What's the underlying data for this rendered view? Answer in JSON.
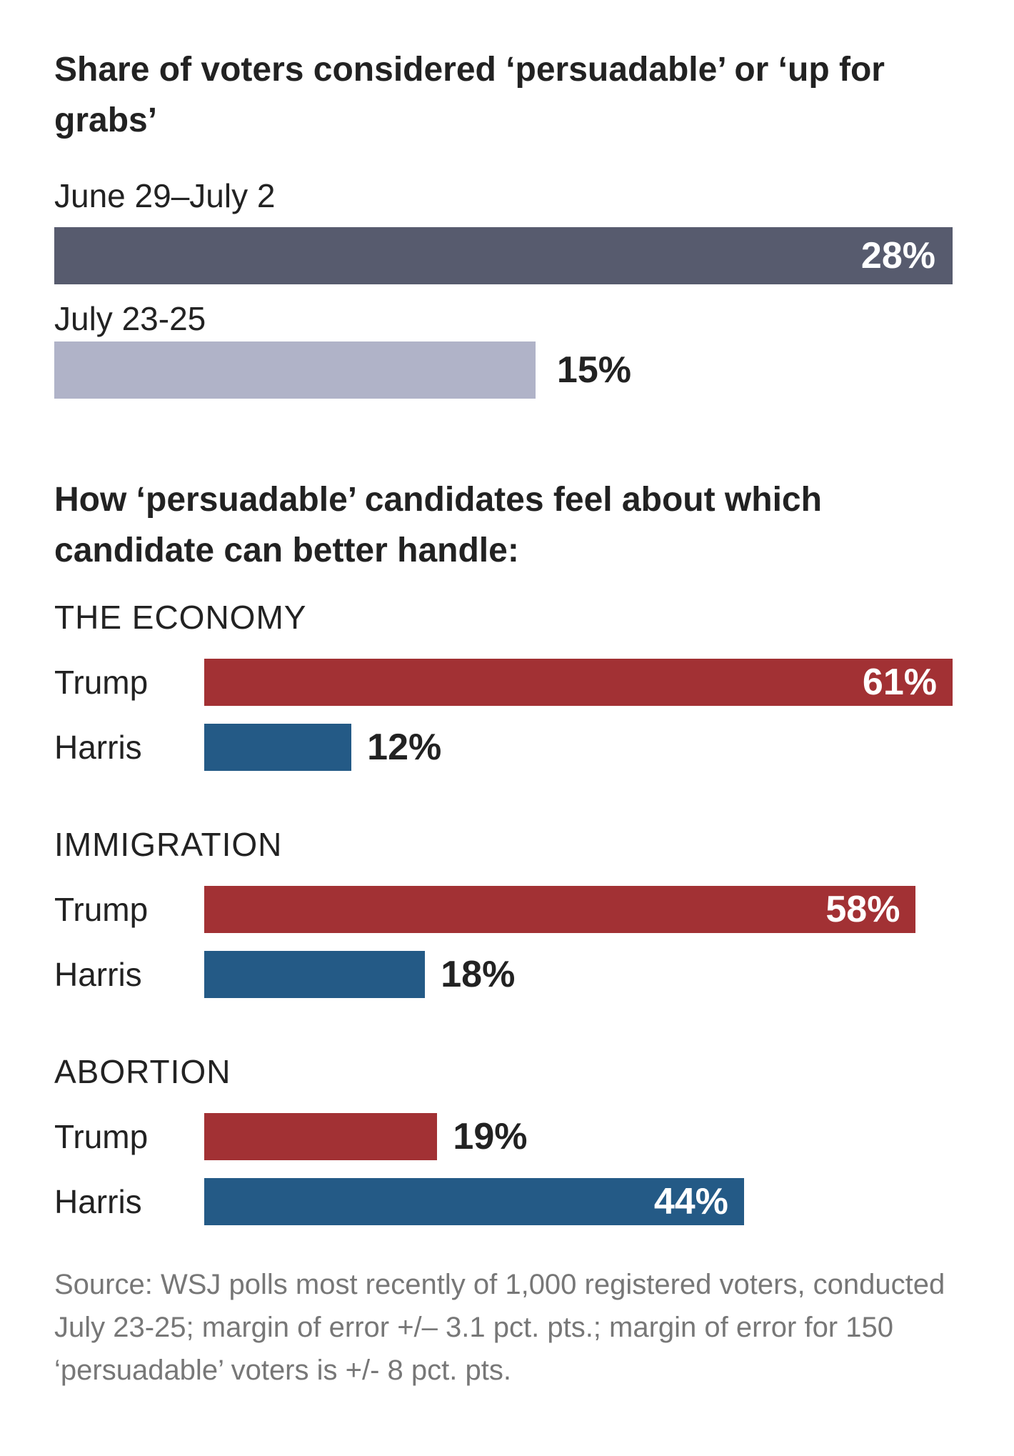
{
  "chart_data": [
    {
      "type": "bar",
      "orientation": "horizontal",
      "title": "Share of voters considered ‘persuadable’ or ‘up for grabs’",
      "categories": [
        "June 29–July 2",
        "July 23-25"
      ],
      "values": [
        28,
        15
      ],
      "labels": [
        "28%",
        "15%"
      ],
      "colors": [
        "#575b6e",
        "#b0b3c8"
      ],
      "xlim": [
        0,
        28
      ]
    },
    {
      "type": "bar",
      "orientation": "horizontal",
      "title": "How ‘persuadable’ candidates feel about which candidate can better handle:",
      "xlim": [
        0,
        61
      ],
      "series_names": [
        "Trump",
        "Harris"
      ],
      "colors": {
        "Trump": "#a23134",
        "Harris": "#245a86"
      },
      "groups": [
        {
          "name": "THE ECONOMY",
          "rows": [
            {
              "label": "Trump",
              "value": 61,
              "text": "61%"
            },
            {
              "label": "Harris",
              "value": 12,
              "text": "12%"
            }
          ]
        },
        {
          "name": "IMMIGRATION",
          "rows": [
            {
              "label": "Trump",
              "value": 58,
              "text": "58%"
            },
            {
              "label": "Harris",
              "value": 18,
              "text": "18%"
            }
          ]
        },
        {
          "name": "ABORTION",
          "rows": [
            {
              "label": "Trump",
              "value": 19,
              "text": "19%"
            },
            {
              "label": "Harris",
              "value": 44,
              "text": "44%"
            }
          ]
        }
      ]
    }
  ],
  "source": "Source: WSJ polls most recently of 1,000 registered voters, conducted July 23-25; margin of error +/– 3.1 pct. pts.; margin of error for 150 ‘persuadable’ voters is +/- 8 pct. pts."
}
